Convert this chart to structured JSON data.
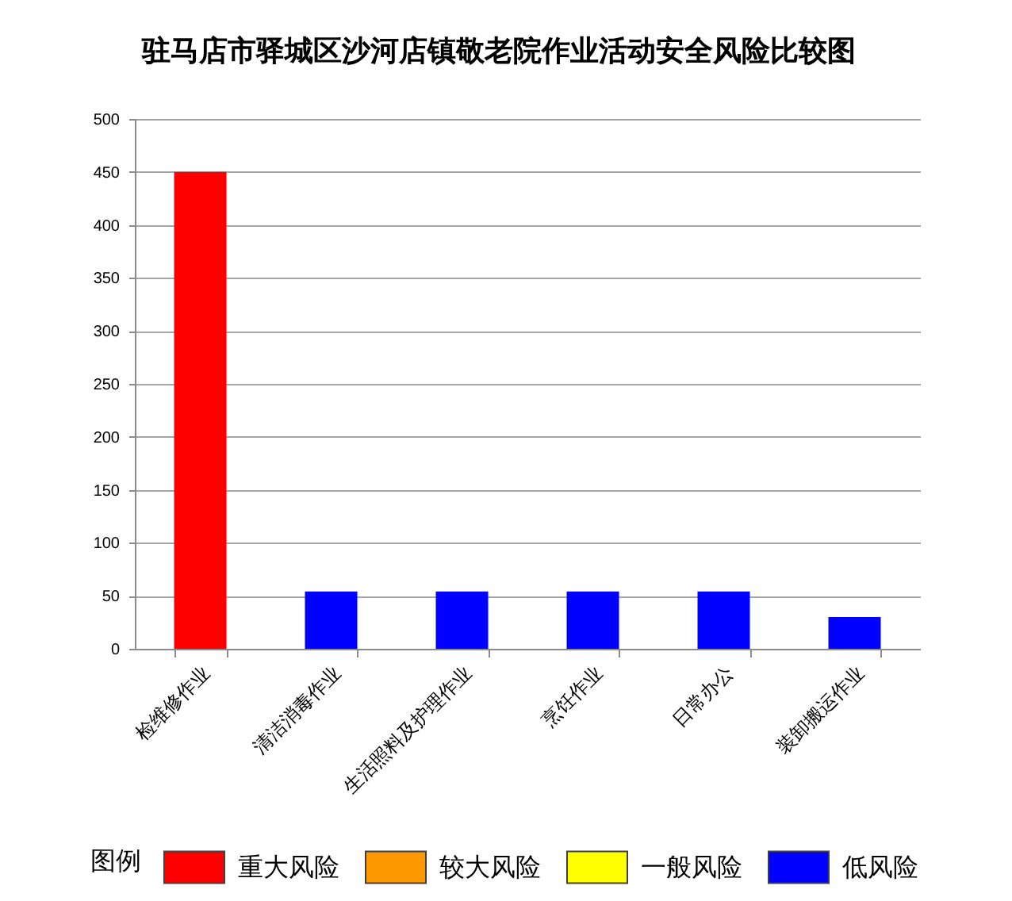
{
  "chart_data": {
    "type": "bar",
    "title": "驻马店市驿城区沙河店镇敬老院作业活动安全风险比较图",
    "categories": [
      "检维修作业",
      "清洁消毒作业",
      "生活照料及护理作业",
      "烹饪作业",
      "日常办公",
      "装卸搬运作业"
    ],
    "series": [
      {
        "name": "重大风险",
        "color": "#ff0000",
        "values": [
          450,
          null,
          null,
          null,
          null,
          null
        ]
      },
      {
        "name": "较大风险",
        "color": "#ff9900",
        "values": [
          null,
          null,
          null,
          null,
          null,
          null
        ]
      },
      {
        "name": "一般风险",
        "color": "#ffff00",
        "values": [
          null,
          null,
          null,
          null,
          null,
          null
        ]
      },
      {
        "name": "低风险",
        "color": "#0000ff",
        "values": [
          null,
          54,
          54,
          54,
          54,
          30
        ]
      }
    ],
    "stacked": true,
    "legend_title": "图例",
    "legend": "bottom",
    "ylim": [
      0,
      500
    ],
    "yticks": [
      0,
      50,
      100,
      150,
      200,
      250,
      300,
      350,
      400,
      450,
      500
    ],
    "grid": "y"
  }
}
